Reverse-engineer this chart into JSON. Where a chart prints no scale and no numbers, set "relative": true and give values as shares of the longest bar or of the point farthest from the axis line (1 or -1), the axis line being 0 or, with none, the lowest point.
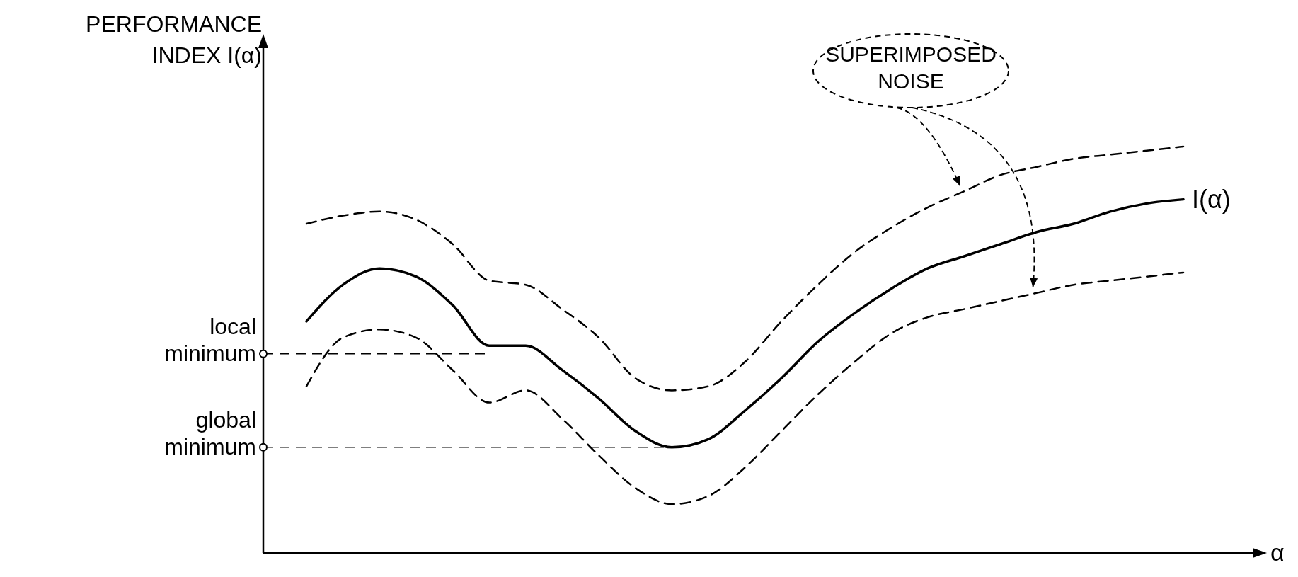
{
  "chart_data": {
    "type": "line",
    "relative": true,
    "ylabel": "PERFORMANCE\nINDEX I(α)",
    "xlabel": "α",
    "categories": [
      null,
      null,
      null,
      null,
      null,
      null,
      null,
      null,
      null,
      null,
      null,
      null,
      null,
      null,
      null,
      null,
      null,
      null,
      null,
      null,
      null,
      null,
      null,
      null,
      null
    ],
    "series": [
      {
        "name": "I(α)",
        "color": "#000000",
        "line_style": "solid",
        "values": [
          0.57,
          0.66,
          0.7,
          0.68,
          0.61,
          0.51,
          0.51,
          0.45,
          0.38,
          0.3,
          0.26,
          0.28,
          0.35,
          0.43,
          0.52,
          0.59,
          0.65,
          0.7,
          0.73,
          0.76,
          0.79,
          0.81,
          0.84,
          0.86,
          0.87
        ]
      },
      {
        "color": "#000000",
        "line_style": "dashed",
        "values": [
          0.81,
          0.83,
          0.84,
          0.82,
          0.76,
          0.67,
          0.66,
          0.6,
          0.53,
          0.43,
          0.4,
          0.41,
          0.47,
          0.57,
          0.66,
          0.74,
          0.8,
          0.85,
          0.89,
          0.93,
          0.95,
          0.97,
          0.98,
          0.99,
          1
        ]
      },
      {
        "color": "#000000",
        "line_style": "dashed",
        "values": [
          0.41,
          0.53,
          0.55,
          0.53,
          0.45,
          0.37,
          0.4,
          0.33,
          0.24,
          0.16,
          0.12,
          0.14,
          0.21,
          0.3,
          0.39,
          0.47,
          0.54,
          0.58,
          0.6,
          0.62,
          0.64,
          0.66,
          0.67,
          0.68,
          0.69
        ]
      }
    ],
    "ref_lines": [
      {
        "axis": "y",
        "value": 0.49,
        "label": "local\nminimum",
        "line_style": "dashed"
      },
      {
        "axis": "y",
        "value": 0.26,
        "label": "global\nminimum",
        "line_style": "dashed"
      }
    ],
    "annotations": [
      "SUPERIMPOSED\nNOISE"
    ]
  }
}
